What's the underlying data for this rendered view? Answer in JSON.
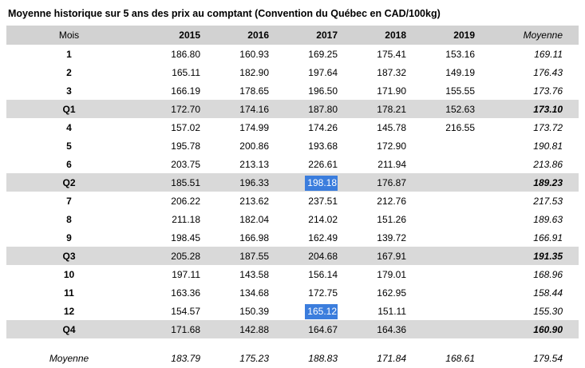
{
  "title": "Moyenne historique sur 5 ans des prix au comptant (Convention du Québec en CAD/100kg)",
  "colors": {
    "header_bg": "#d2d2d2",
    "quarter_bg": "#d9d9d9",
    "highlight_bg": "#3b7ddd",
    "highlight_text": "#ffffff"
  },
  "chart_data": {
    "type": "table",
    "title": "Moyenne historique sur 5 ans des prix au comptant (Convention du Québec en CAD/100kg)",
    "columns": [
      "Mois",
      "2015",
      "2016",
      "2017",
      "2018",
      "2019",
      "Moyenne"
    ],
    "rows": [
      {
        "label": "1",
        "kind": "month",
        "values": [
          "186.80",
          "160.93",
          "169.25",
          "175.41",
          "153.16",
          "169.11"
        ]
      },
      {
        "label": "2",
        "kind": "month",
        "values": [
          "165.11",
          "182.90",
          "197.64",
          "187.32",
          "149.19",
          "176.43"
        ]
      },
      {
        "label": "3",
        "kind": "month",
        "values": [
          "166.19",
          "178.65",
          "196.50",
          "171.90",
          "155.55",
          "173.76"
        ]
      },
      {
        "label": "Q1",
        "kind": "quarter",
        "values": [
          "172.70",
          "174.16",
          "187.80",
          "178.21",
          "152.63",
          "173.10"
        ]
      },
      {
        "label": "4",
        "kind": "month",
        "values": [
          "157.02",
          "174.99",
          "174.26",
          "145.78",
          "216.55",
          "173.72"
        ]
      },
      {
        "label": "5",
        "kind": "month",
        "values": [
          "195.78",
          "200.86",
          "193.68",
          "172.90",
          "",
          "190.81"
        ]
      },
      {
        "label": "6",
        "kind": "month",
        "values": [
          "203.75",
          "213.13",
          "226.61",
          "211.94",
          "",
          "213.86"
        ]
      },
      {
        "label": "Q2",
        "kind": "quarter",
        "values": [
          "185.51",
          "196.33",
          "198.18",
          "176.87",
          "",
          "189.23"
        ],
        "highlight": [
          2
        ]
      },
      {
        "label": "7",
        "kind": "month",
        "values": [
          "206.22",
          "213.62",
          "237.51",
          "212.76",
          "",
          "217.53"
        ]
      },
      {
        "label": "8",
        "kind": "month",
        "values": [
          "211.18",
          "182.04",
          "214.02",
          "151.26",
          "",
          "189.63"
        ]
      },
      {
        "label": "9",
        "kind": "month",
        "values": [
          "198.45",
          "166.98",
          "162.49",
          "139.72",
          "",
          "166.91"
        ]
      },
      {
        "label": "Q3",
        "kind": "quarter",
        "values": [
          "205.28",
          "187.55",
          "204.68",
          "167.91",
          "",
          "191.35"
        ]
      },
      {
        "label": "10",
        "kind": "month",
        "values": [
          "197.11",
          "143.58",
          "156.14",
          "179.01",
          "",
          "168.96"
        ]
      },
      {
        "label": "11",
        "kind": "month",
        "values": [
          "163.36",
          "134.68",
          "172.75",
          "162.95",
          "",
          "158.44"
        ]
      },
      {
        "label": "12",
        "kind": "month",
        "values": [
          "154.57",
          "150.39",
          "165.12",
          "151.11",
          "",
          "155.30"
        ],
        "highlight": [
          2
        ]
      },
      {
        "label": "Q4",
        "kind": "quarter",
        "values": [
          "171.68",
          "142.88",
          "164.67",
          "164.36",
          "",
          "160.90"
        ]
      },
      {
        "label": "Moyenne",
        "kind": "average",
        "values": [
          "183.79",
          "175.23",
          "188.83",
          "171.84",
          "168.61",
          "179.54"
        ]
      }
    ]
  }
}
